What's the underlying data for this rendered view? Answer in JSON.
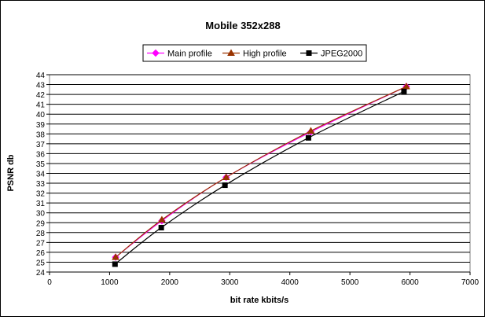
{
  "chart_data": {
    "type": "line",
    "title": "Mobile 352x288",
    "xlabel": "bit rate kbits/s",
    "ylabel": "PSNR db",
    "xlim": [
      0,
      7000
    ],
    "ylim": [
      24,
      44
    ],
    "xticks": [
      0,
      1000,
      2000,
      3000,
      4000,
      5000,
      6000,
      7000
    ],
    "yticks": [
      24,
      25,
      26,
      27,
      28,
      29,
      30,
      31,
      32,
      33,
      34,
      35,
      36,
      37,
      38,
      39,
      40,
      41,
      42,
      43,
      44
    ],
    "grid": "horizontal",
    "legend_position": "top",
    "series": [
      {
        "name": "Main profile",
        "color": "#ff00ff",
        "marker": "diamond",
        "points": [
          [
            1100,
            25.5
          ],
          [
            1870,
            29.2
          ],
          [
            2940,
            33.6
          ],
          [
            4350,
            38.2
          ],
          [
            5940,
            42.8
          ]
        ]
      },
      {
        "name": "High profile",
        "color": "#993300",
        "marker": "triangle",
        "points": [
          [
            1100,
            25.5
          ],
          [
            1870,
            29.3
          ],
          [
            2940,
            33.6
          ],
          [
            4350,
            38.3
          ],
          [
            5940,
            42.8
          ]
        ]
      },
      {
        "name": "JPEG2000",
        "color": "#000000",
        "marker": "square",
        "points": [
          [
            1090,
            24.8
          ],
          [
            1860,
            28.5
          ],
          [
            2920,
            32.8
          ],
          [
            4310,
            37.6
          ],
          [
            5900,
            42.3
          ]
        ]
      }
    ]
  }
}
